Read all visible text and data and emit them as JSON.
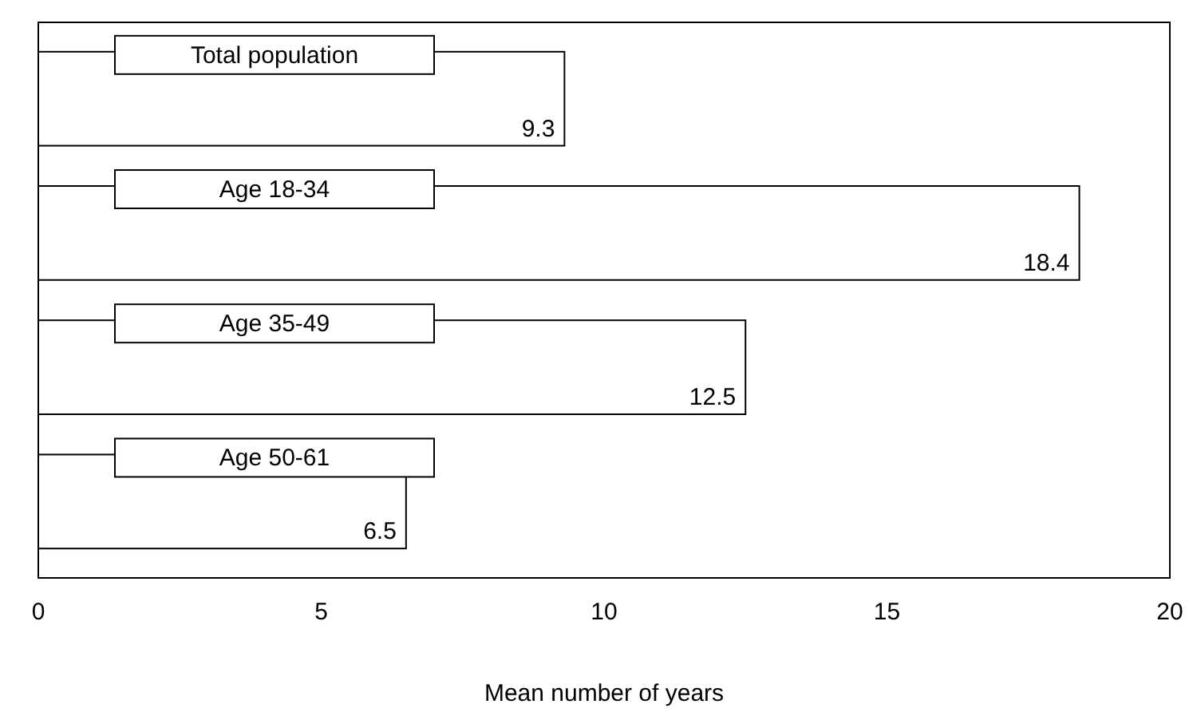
{
  "chart_data": {
    "type": "bar",
    "orientation": "horizontal",
    "xlabel": "Mean number of years",
    "categories": [
      "Total population",
      "Age 18-34",
      "Age 35-49",
      "Age 50-61"
    ],
    "values": [
      9.3,
      18.4,
      12.5,
      6.5
    ],
    "color": "#ffffff",
    "data_labels": true,
    "xlim": [
      0,
      20
    ],
    "xticks": [
      0,
      5,
      10,
      15,
      20
    ],
    "grid": false,
    "tick_labels": "x"
  }
}
